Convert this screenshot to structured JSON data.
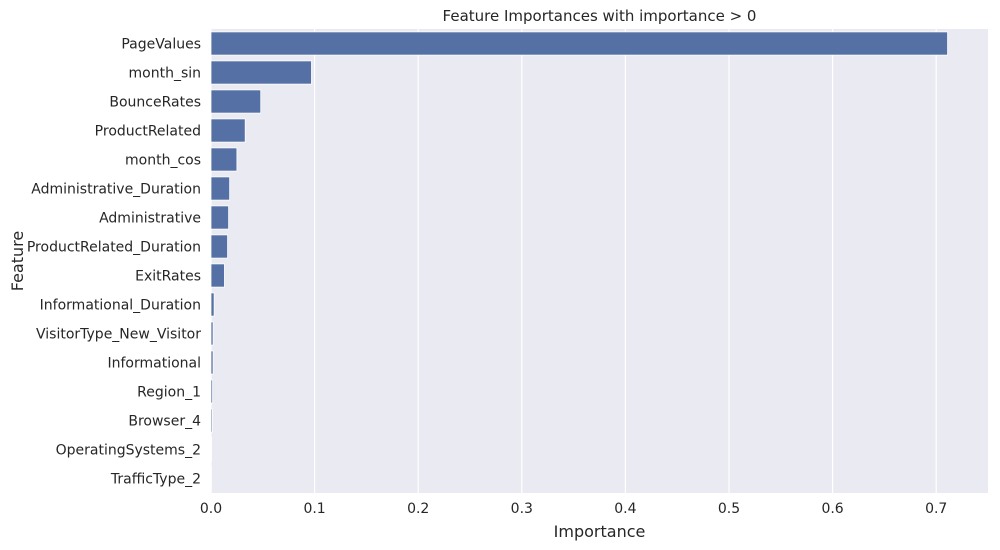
{
  "chart_data": {
    "type": "bar",
    "orientation": "horizontal",
    "title": "Feature Importances with importance > 0",
    "xlabel": "Importance",
    "ylabel": "Feature",
    "xlim": [
      0,
      0.75
    ],
    "xticks": [
      "0.0",
      "0.1",
      "0.2",
      "0.3",
      "0.4",
      "0.5",
      "0.6",
      "0.7"
    ],
    "grid": true,
    "categories": [
      "PageValues",
      "month_sin",
      "BounceRates",
      "ProductRelated",
      "month_cos",
      "Administrative_Duration",
      "Administrative",
      "ProductRelated_Duration",
      "ExitRates",
      "Informational_Duration",
      "VisitorType_New_Visitor",
      "Informational",
      "Region_1",
      "Browser_4",
      "OperatingSystems_2",
      "TrafficType_2"
    ],
    "values": [
      0.711,
      0.097,
      0.048,
      0.033,
      0.025,
      0.018,
      0.017,
      0.016,
      0.013,
      0.003,
      0.002,
      0.002,
      0.0015,
      0.0012,
      0.0006,
      0.0004
    ],
    "bar_color": "#5470a4",
    "background_color": "#eaeaf2",
    "grid_color": "#ffffff"
  }
}
